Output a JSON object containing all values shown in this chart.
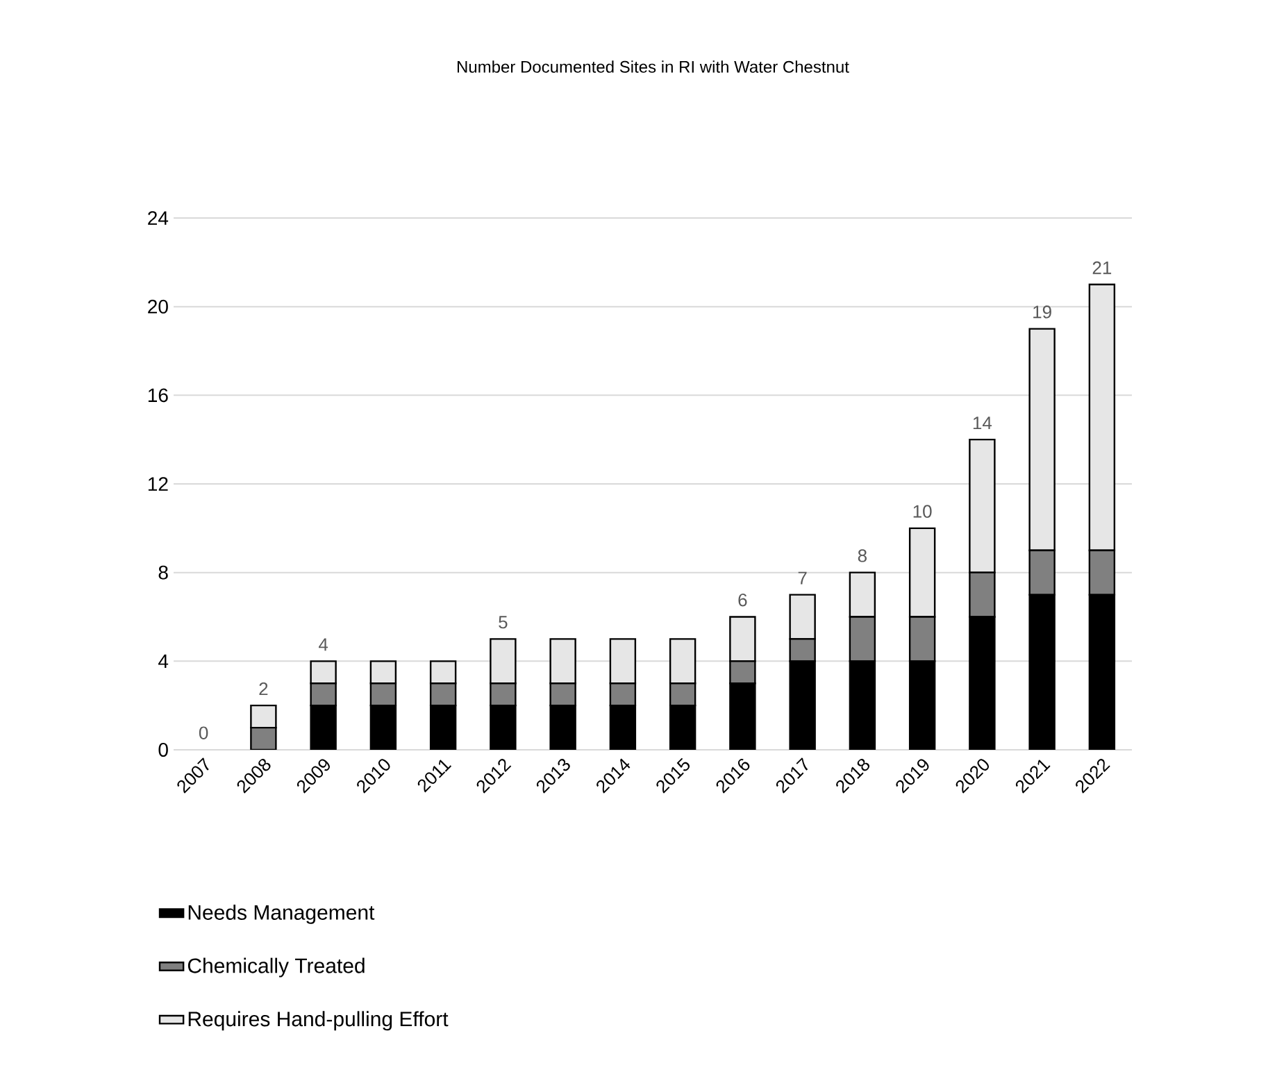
{
  "chart_data": {
    "type": "bar",
    "title": "Number Documented Sites in RI with Water Chestnut",
    "categories": [
      "2007",
      "2008",
      "2009",
      "2010",
      "2011",
      "2012",
      "2013",
      "2014",
      "2015",
      "2016",
      "2017",
      "2018",
      "2019",
      "2020",
      "2021",
      "2022"
    ],
    "series": [
      {
        "name": "Needs Management",
        "color": "#000000",
        "values": [
          0,
          0,
          2,
          2,
          2,
          2,
          2,
          2,
          2,
          3,
          4,
          4,
          4,
          6,
          7,
          7
        ]
      },
      {
        "name": "Chemically Treated",
        "color": "#808080",
        "values": [
          0,
          1,
          1,
          1,
          1,
          1,
          1,
          1,
          1,
          1,
          1,
          2,
          2,
          2,
          2,
          2
        ]
      },
      {
        "name": "Requires Hand-pulling Effort",
        "color": "#e6e6e6",
        "values": [
          0,
          1,
          1,
          1,
          1,
          2,
          2,
          2,
          2,
          2,
          2,
          2,
          4,
          6,
          10,
          12
        ]
      }
    ],
    "stacked": true,
    "totals": [
      "0",
      "2",
      "4",
      null,
      null,
      "5",
      null,
      null,
      null,
      "6",
      "7",
      "8",
      "10",
      "14",
      "19",
      "21"
    ],
    "ylim": [
      0,
      24
    ],
    "yticks": [
      0,
      4,
      8,
      12,
      16,
      20,
      24
    ],
    "grid": "y",
    "legend": "bottom"
  }
}
